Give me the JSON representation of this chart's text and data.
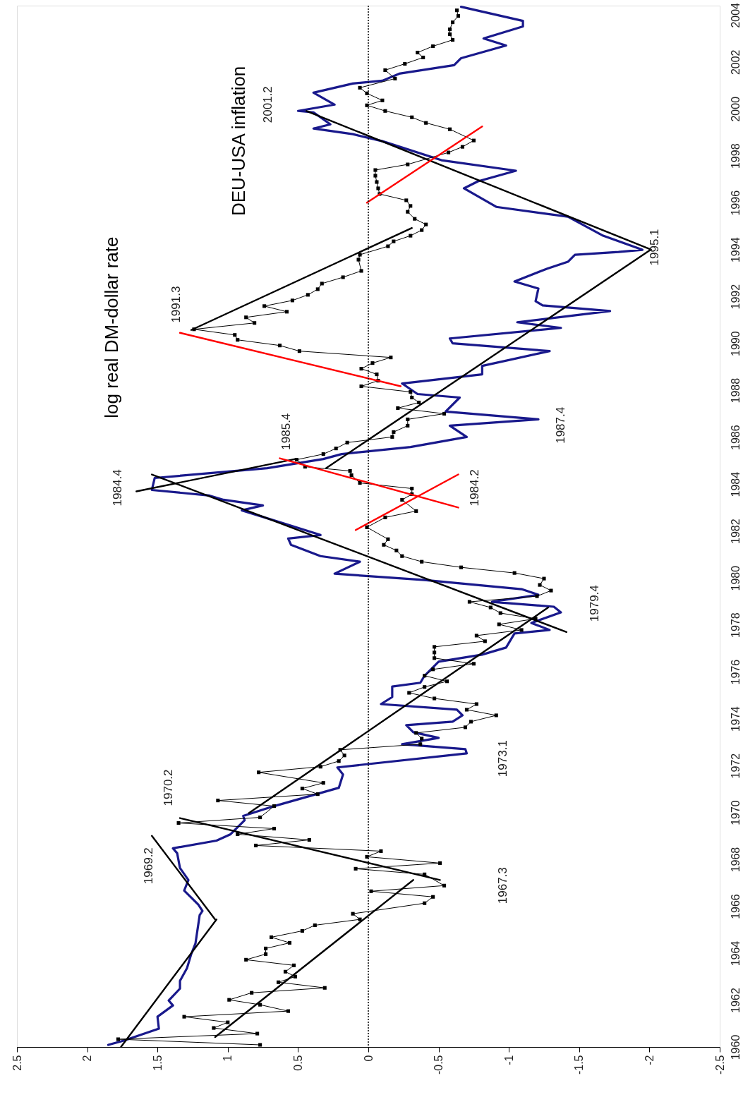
{
  "chart_data": {
    "type": "line",
    "orientation": "horizontal",
    "ylim": [
      1960,
      2004.4
    ],
    "yticks": [
      1960,
      1962,
      1964,
      1966,
      1968,
      1970,
      1972,
      1974,
      1976,
      1978,
      1980,
      1982,
      1984,
      1986,
      1988,
      1990,
      1992,
      1994,
      1996,
      1998,
      2000,
      2002,
      2004
    ],
    "xlim": [
      2.5,
      -2.5
    ],
    "xticks": [
      2.5,
      2,
      1.5,
      1,
      0.5,
      0,
      -0.5,
      -1,
      -1.5,
      -2,
      -2.5
    ],
    "grid": false,
    "ref_lines": [
      {
        "axis": "x",
        "value": 0,
        "line_style": "dotted",
        "color": "#000000"
      }
    ],
    "annotations": [
      "log real DM-dollar rate",
      "DEU-USA inflation",
      "2001.2",
      "1991.3",
      "1995.1",
      "1985.4",
      "1987.4",
      "1984.4",
      "1984.2",
      "1979.4",
      "1973.1",
      "1970.2",
      "1969.2",
      "1967.3"
    ],
    "series": [
      {
        "color": "#19198c",
        "marker": "none",
        "line_style": "solid",
        "x": [
          1960.09,
          1960.27,
          1960.78,
          1961.29,
          1961.77,
          1961.98,
          1962.49,
          1962.82,
          1963.36,
          1963.96,
          1964.41,
          1965.62,
          1965.8,
          1966.07,
          1966.67,
          1967.12,
          1967.63,
          1968.26,
          1968.47,
          1968.8,
          1969.07,
          1969.67,
          1969.85,
          1970.27,
          1971.05,
          1971.62,
          1971.92,
          1972.52,
          1972.7,
          1972.91,
          1973.18,
          1973.42,
          1973.72,
          1973.87,
          1974.14,
          1974.38,
          1974.62,
          1974.92,
          1975.37,
          1975.53,
          1975.83,
          1976.43,
          1976.73,
          1977.03,
          1977.63,
          1977.78,
          1978.08,
          1978.53,
          1978.77,
          1978.98,
          1979.28,
          1979.52,
          1979.91,
          1980.18,
          1980.69,
          1980.93,
          1981.41,
          1981.68,
          1981.83,
          1982.88,
          1983.09,
          1983.33,
          1983.51,
          1983.75,
          1984.26,
          1984.68,
          1985.07,
          1985.28,
          1985.58,
          1986.01,
          1986.49,
          1986.76,
          1987.09,
          1987.69,
          1987.84,
          1988.29,
          1988.68,
          1989.04,
          1989.67,
          1990.0,
          1990.21,
          1990.66,
          1990.9,
          1991.38,
          1991.62,
          1991.8,
          1992.34,
          1992.64,
          1993.18,
          1993.48,
          1993.78,
          1993.9,
          1993.99,
          1994.59,
          1995.4,
          1995.82,
          1996.61,
          1996.91,
          1997.36,
          1997.81,
          1998.62,
          1998.92,
          1999.16,
          1999.34,
          1999.85,
          1999.91,
          2000.18,
          2000.69,
          2001.08,
          2001.2,
          2001.5,
          2001.86,
          2002.16,
          2002.7,
          2003.0,
          2003.51,
          2003.75,
          2004.35
        ],
        "values": [
          1.85,
          1.74,
          1.49,
          1.5,
          1.39,
          1.42,
          1.34,
          1.34,
          1.29,
          1.26,
          1.23,
          1.2,
          1.18,
          1.21,
          1.31,
          1.28,
          1.34,
          1.36,
          1.39,
          1.08,
          0.98,
          0.88,
          0.89,
          0.67,
          0.21,
          0.18,
          0.22,
          -0.7,
          -0.69,
          -0.24,
          -0.5,
          -0.32,
          -0.27,
          -0.6,
          -0.67,
          -0.63,
          -0.09,
          -0.17,
          -0.17,
          -0.37,
          -0.4,
          -0.5,
          -0.81,
          -0.98,
          -1.04,
          -1.29,
          -1.16,
          -1.37,
          -1.32,
          -0.88,
          -1.21,
          -1.09,
          -0.4,
          0.24,
          0.06,
          0.34,
          0.55,
          0.57,
          0.34,
          0.9,
          0.75,
          1.03,
          1.13,
          1.54,
          1.52,
          0.72,
          0.32,
          0.19,
          -0.3,
          -0.7,
          -0.58,
          -1.21,
          -0.55,
          -0.65,
          -0.35,
          -0.24,
          -0.81,
          -0.81,
          -1.29,
          -0.6,
          -0.58,
          -1.37,
          -1.06,
          -1.72,
          -1.24,
          -1.19,
          -1.21,
          -1.04,
          -1.27,
          -1.42,
          -1.47,
          -1.78,
          -1.95,
          -1.67,
          -1.42,
          -0.91,
          -0.68,
          -0.78,
          -1.05,
          -0.52,
          -0.1,
          0.11,
          0.39,
          0.27,
          0.39,
          0.5,
          0.24,
          0.39,
          0.11,
          -0.1,
          -0.22,
          -0.61,
          -0.66,
          -0.98,
          -0.82,
          -1.1,
          -1.1,
          -0.66
        ]
      },
      {
        "color": "#000000",
        "marker": "square",
        "line_style": "solid",
        "x": [
          1960.09,
          1960.33,
          1960.57,
          1960.81,
          1961.05,
          1961.29,
          1961.53,
          1961.8,
          1962.01,
          1962.31,
          1962.52,
          1962.76,
          1963.0,
          1963.21,
          1963.48,
          1963.72,
          1963.96,
          1964.2,
          1964.44,
          1964.68,
          1964.95,
          1965.19,
          1965.44,
          1965.68,
          1966.13,
          1966.4,
          1966.64,
          1966.88,
          1967.36,
          1967.6,
          1967.84,
          1968.11,
          1968.35,
          1968.59,
          1968.83,
          1969.07,
          1969.31,
          1969.55,
          1969.79,
          1970.27,
          1970.51,
          1970.78,
          1971.02,
          1971.26,
          1971.71,
          1971.95,
          1972.19,
          1972.43,
          1972.67,
          1972.91,
          1973.15,
          1973.39,
          1973.63,
          1973.87,
          1974.14,
          1974.38,
          1974.62,
          1974.86,
          1975.1,
          1975.35,
          1975.59,
          1975.83,
          1976.1,
          1976.34,
          1976.58,
          1976.82,
          1977.06,
          1977.3,
          1977.54,
          1977.78,
          1978.02,
          1978.26,
          1978.5,
          1978.74,
          1978.98,
          1979.22,
          1979.46,
          1979.7,
          1979.97,
          1980.21,
          1980.45,
          1980.69,
          1980.93,
          1981.17,
          1981.41,
          1981.65,
          1982.16,
          1982.58,
          1982.85,
          1983.33,
          1983.57,
          1983.81,
          1984.05,
          1984.38,
          1984.56,
          1984.74,
          1985.04,
          1985.28,
          1985.52,
          1985.77,
          1986.01,
          1986.22,
          1986.49,
          1986.76,
          1987.0,
          1987.24,
          1987.48,
          1987.69,
          1987.93,
          1988.17,
          1988.41,
          1988.68,
          1988.92,
          1989.16,
          1989.4,
          1989.67,
          1989.91,
          1990.15,
          1990.36,
          1990.6,
          1990.87,
          1991.11,
          1991.35,
          1991.59,
          1991.83,
          1992.07,
          1992.31,
          1992.55,
          1992.82,
          1993.09,
          1993.57,
          1993.78,
          1994.14,
          1994.35,
          1994.59,
          1994.83,
          1995.07,
          1995.31,
          1995.61,
          1995.86,
          1996.1,
          1996.37,
          1996.61,
          1996.88,
          1997.15,
          1997.39,
          1997.63,
          1998.14,
          1998.38,
          1998.65,
          1999.13,
          1999.4,
          1999.64,
          1999.91,
          2000.15,
          2000.36,
          2000.66,
          2000.9,
          2001.29,
          2001.65,
          2001.92,
          2002.19,
          2002.4,
          2002.67,
          2002.94,
          2003.18,
          2003.39,
          2003.69,
          2003.96,
          2004.2
        ],
        "values": [
          0.77,
          1.78,
          0.79,
          1.1,
          1.0,
          1.31,
          0.57,
          0.77,
          0.99,
          0.83,
          0.31,
          0.64,
          0.52,
          0.59,
          0.53,
          0.87,
          0.73,
          0.73,
          0.56,
          0.69,
          0.47,
          0.38,
          0.06,
          0.11,
          -0.4,
          -0.46,
          -0.02,
          -0.54,
          -0.4,
          0.09,
          -0.51,
          0.01,
          -0.09,
          0.8,
          0.42,
          0.93,
          0.67,
          1.35,
          0.77,
          0.67,
          1.07,
          0.36,
          0.47,
          0.32,
          0.78,
          0.34,
          0.21,
          0.17,
          0.2,
          -0.37,
          -0.38,
          -0.34,
          -0.69,
          -0.73,
          -0.91,
          -0.7,
          -0.77,
          -0.47,
          -0.29,
          -0.4,
          -0.56,
          -0.4,
          -0.46,
          -0.75,
          -0.47,
          -0.47,
          -0.47,
          -0.83,
          -0.77,
          -1.09,
          -0.93,
          -1.19,
          -0.94,
          -0.87,
          -0.72,
          -1.2,
          -1.3,
          -1.22,
          -1.25,
          -1.04,
          -0.66,
          -0.38,
          -0.24,
          -0.2,
          -0.11,
          -0.14,
          0.01,
          -0.12,
          -0.34,
          -0.24,
          -0.31,
          -0.31,
          0.06,
          0.12,
          0.13,
          0.45,
          0.51,
          0.32,
          0.23,
          0.15,
          -0.17,
          -0.18,
          -0.28,
          -0.28,
          -0.54,
          -0.21,
          -0.36,
          -0.31,
          -0.3,
          0.05,
          -0.07,
          -0.06,
          0.05,
          -0.03,
          -0.16,
          0.49,
          0.63,
          0.93,
          0.95,
          1.24,
          0.81,
          0.87,
          0.58,
          0.74,
          0.54,
          0.43,
          0.36,
          0.33,
          0.18,
          0.05,
          0.07,
          0.06,
          -0.14,
          -0.18,
          -0.3,
          -0.38,
          -0.41,
          -0.33,
          -0.28,
          -0.3,
          -0.27,
          -0.08,
          -0.07,
          -0.06,
          -0.05,
          -0.05,
          -0.28,
          -0.57,
          -0.67,
          -0.75,
          -0.58,
          -0.41,
          -0.31,
          -0.12,
          0.01,
          -0.1,
          0.01,
          0.06,
          -0.19,
          -0.12,
          -0.26,
          -0.39,
          -0.35,
          -0.46,
          -0.6,
          -0.58,
          -0.58,
          -0.6,
          -0.64,
          -0.63
        ]
      },
      {
        "type": "line",
        "color": "#000000",
        "marker": "none",
        "x": [
          1960.0,
          1965.44
        ],
        "values": [
          1.76,
          1.08
        ]
      },
      {
        "type": "line",
        "color": "#000000",
        "marker": "none",
        "x": [
          1965.44,
          1969.0
        ],
        "values": [
          1.09,
          1.54
        ]
      },
      {
        "type": "line",
        "color": "#000000",
        "marker": "none",
        "x": [
          1960.42,
          1967.12
        ],
        "values": [
          1.09,
          -0.32
        ]
      },
      {
        "type": "line",
        "color": "#000000",
        "marker": "none",
        "x": [
          1967.12,
          1969.76
        ],
        "values": [
          -0.51,
          1.34
        ]
      },
      {
        "type": "line",
        "color": "#000000",
        "marker": "none",
        "x": [
          1969.97,
          1978.74
        ],
        "values": [
          0.85,
          -1.28
        ]
      },
      {
        "type": "line",
        "color": "#000000",
        "marker": "none",
        "x": [
          1977.69,
          1984.41
        ],
        "values": [
          -1.41,
          1.54
        ]
      },
      {
        "type": "line",
        "color": "#000000",
        "marker": "none",
        "x": [
          1983.69,
          1985.07
        ],
        "values": [
          1.65,
          0.52
        ]
      },
      {
        "type": "line",
        "color": "#000000",
        "marker": "none",
        "x": [
          1984.68,
          1994.0
        ],
        "values": [
          0.3,
          -2.01
        ]
      },
      {
        "type": "line",
        "color": "#000000",
        "marker": "none",
        "x": [
          1990.57,
          1994.92
        ],
        "values": [
          1.26,
          -0.31
        ]
      },
      {
        "type": "line",
        "color": "#000000",
        "marker": "none",
        "x": [
          1994.0,
          1999.91
        ],
        "values": [
          -2.01,
          0.44
        ]
      },
      {
        "type": "line",
        "color": "#ff0000",
        "marker": "none",
        "x": [
          1988.17,
          1990.45
        ],
        "values": [
          -0.23,
          1.34
        ]
      },
      {
        "type": "line",
        "color": "#ff0000",
        "marker": "none",
        "x": [
          1983.0,
          1985.1
        ],
        "values": [
          -0.64,
          0.63
        ]
      },
      {
        "type": "line",
        "color": "#ff0000",
        "marker": "none",
        "x": [
          1982.04,
          1984.41
        ],
        "values": [
          0.09,
          -0.64
        ]
      },
      {
        "type": "line",
        "color": "#ff0000",
        "marker": "none",
        "x": [
          1996.0,
          1999.25
        ],
        "values": [
          0.01,
          -0.81
        ]
      }
    ]
  }
}
